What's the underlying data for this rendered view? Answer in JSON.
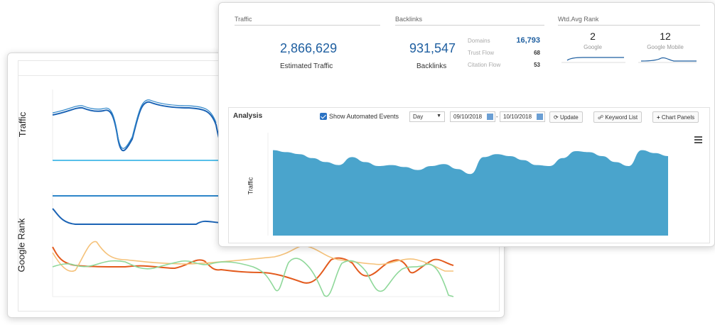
{
  "back_panel": {
    "traffic_label": "Traffic",
    "google_rank_label": "Google Rank"
  },
  "stats": {
    "traffic": {
      "section_title": "Traffic",
      "value": "2,866,629",
      "label": "Estimated Traffic"
    },
    "backlinks": {
      "section_title": "Backlinks",
      "value": "931,547",
      "label": "Backlinks",
      "metrics": [
        {
          "name": "Domains",
          "value": "16,793"
        },
        {
          "name": "Trust Flow",
          "value": "68"
        },
        {
          "name": "Citation Flow",
          "value": "53"
        }
      ]
    },
    "rank": {
      "section_title": "Wtd.Avg Rank",
      "google": {
        "value": "2",
        "label": "Google"
      },
      "google_mobile": {
        "value": "12",
        "label": "Google Mobile"
      }
    }
  },
  "analysis": {
    "title": "Analysis",
    "show_events_label": "Show Automated Events",
    "show_events_checked": true,
    "interval": "Day",
    "date_from": "09/10/2018",
    "date_to": "10/10/2018",
    "date_separator": "-",
    "update_label": "Update",
    "keyword_list_label": "Keyword List",
    "chart_panels_label": "Chart Panels",
    "chart_ylabel": "Traffic"
  },
  "colors": {
    "accent": "#1f5fa0",
    "area_fill": "#4aa4cc",
    "rank_orange": "#e35b1e",
    "rank_yellow": "#f5c27a",
    "rank_green": "#8fd89a"
  },
  "chart_data": {
    "type": "area",
    "title": "",
    "xlabel": "",
    "ylabel": "Traffic",
    "x": [
      1,
      2,
      3,
      4,
      5,
      6,
      7,
      8,
      9,
      10,
      11,
      12,
      13,
      14,
      15,
      16,
      17,
      18,
      19,
      20,
      21,
      22,
      23,
      24,
      25,
      26,
      27,
      28,
      29,
      30,
      31
    ],
    "values": [
      0.86,
      0.84,
      0.82,
      0.78,
      0.74,
      0.71,
      0.79,
      0.74,
      0.7,
      0.71,
      0.69,
      0.66,
      0.7,
      0.72,
      0.67,
      0.62,
      0.79,
      0.82,
      0.8,
      0.76,
      0.71,
      0.7,
      0.78,
      0.85,
      0.84,
      0.8,
      0.74,
      0.7,
      0.86,
      0.83,
      0.8
    ],
    "ylim": [
      0,
      1
    ]
  }
}
